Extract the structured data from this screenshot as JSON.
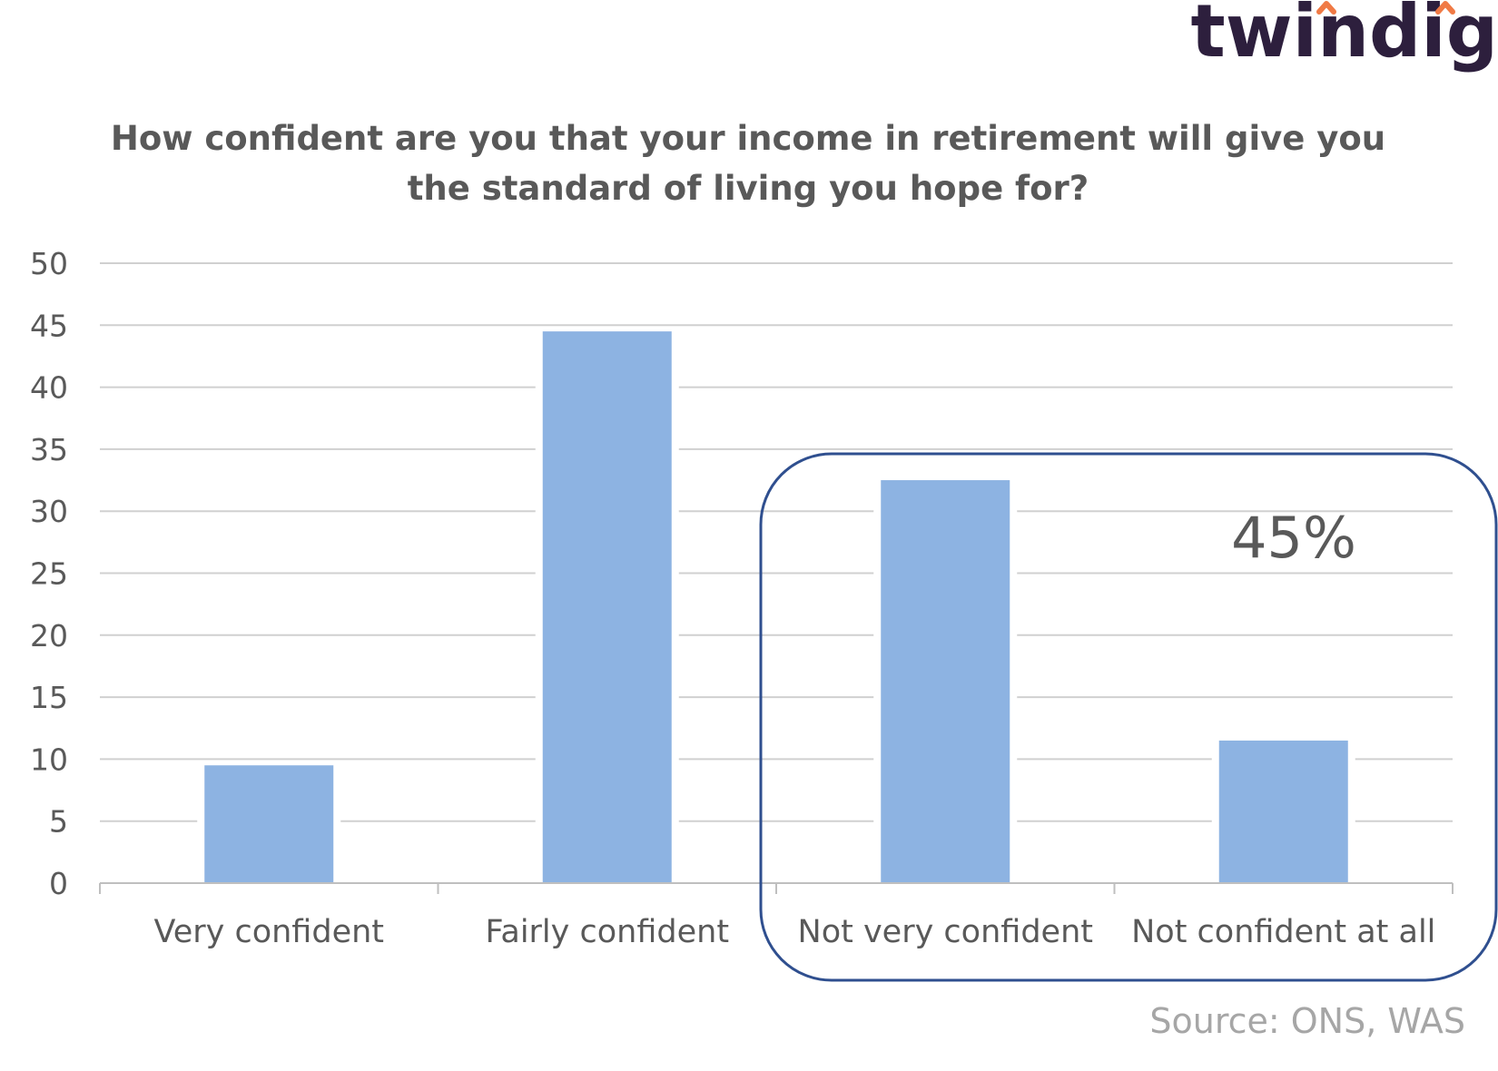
{
  "logo": {
    "text": "twindig",
    "text_color": "#2d1f3d",
    "accent_color": "#f07a45"
  },
  "chart_data": {
    "type": "bar",
    "title_lines": [
      "How confident are you that your income in retirement will give you",
      "the standard of living you hope for?"
    ],
    "categories": [
      "Very confident",
      "Fairly confident",
      "Not very confident",
      "Not confident at all"
    ],
    "values": [
      9.5,
      44.5,
      32.5,
      11.5
    ],
    "ylim": [
      0,
      50
    ],
    "yticks": [
      0,
      5,
      10,
      15,
      20,
      25,
      30,
      35,
      40,
      45,
      50
    ],
    "grid": true,
    "bar_color": "#8db3e2",
    "highlight": {
      "categories": [
        "Not very confident",
        "Not confident at all"
      ],
      "label": "45%",
      "border_color": "#2f4f8f"
    },
    "source": "Source: ONS, WAS"
  }
}
